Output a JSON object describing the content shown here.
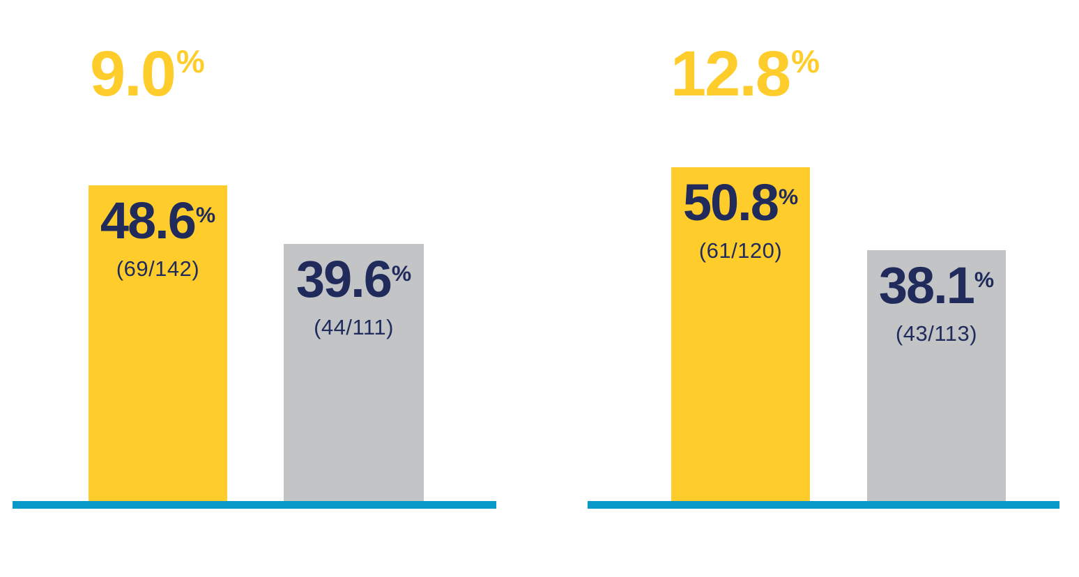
{
  "colors": {
    "accent_yellow": "#FFCD2B",
    "navy_text": "#202B5C",
    "gray_bar": "#C2C4C6",
    "baseline_blue": "#0999C9",
    "background": "#FFFFFF"
  },
  "chart_data": {
    "type": "bar",
    "title": "",
    "xlabel": "",
    "ylabel": "",
    "ylim": [
      0,
      55
    ],
    "grid": false,
    "legend": "none",
    "axes": "hidden; only a blue baseline under each panel",
    "panels": [
      {
        "difference_headline": {
          "value": "9.0",
          "unit": "%",
          "color": "#FFCD2B"
        },
        "bars": [
          {
            "name": "highlighted",
            "value": 48.6,
            "unit": "%",
            "display_value": "48.6",
            "fraction": "(69/142)",
            "numerator": 69,
            "denominator": 142,
            "color": "#FFCD2B"
          },
          {
            "name": "comparator",
            "value": 39.6,
            "unit": "%",
            "display_value": "39.6",
            "fraction": "(44/111)",
            "numerator": 44,
            "denominator": 111,
            "color": "#C2C4C6"
          }
        ]
      },
      {
        "difference_headline": {
          "value": "12.8",
          "unit": "%",
          "color": "#FFCD2B"
        },
        "bars": [
          {
            "name": "highlighted",
            "value": 50.8,
            "unit": "%",
            "display_value": "50.8",
            "fraction": "(61/120)",
            "numerator": 61,
            "denominator": 120,
            "color": "#FFCD2B"
          },
          {
            "name": "comparator",
            "value": 38.1,
            "unit": "%",
            "display_value": "38.1",
            "fraction": "(43/113)",
            "numerator": 43,
            "denominator": 113,
            "color": "#C2C4C6"
          }
        ]
      }
    ]
  }
}
